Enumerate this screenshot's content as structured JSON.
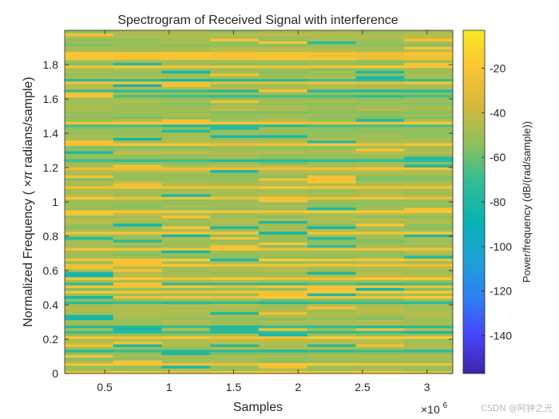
{
  "chart_data": {
    "type": "heatmap",
    "title": "Spectrogram of Received Signal with interference",
    "xlabel": "Samples",
    "ylabel_prefix": "Normalized Frequency (",
    "ylabel_symbol": "×π",
    "ylabel_suffix": " radians/sample)",
    "x_multiplier_base": "×10",
    "x_multiplier_exp": "6",
    "xlim": [
      0.19,
      3.2
    ],
    "ylim": [
      0,
      2
    ],
    "x_ticks": [
      0.5,
      1,
      1.5,
      2,
      2.5,
      3
    ],
    "x_tick_labels": [
      "0.5",
      "1",
      "1.5",
      "2",
      "2.5",
      "3"
    ],
    "y_ticks": [
      0,
      0.2,
      0.4,
      0.6,
      0.8,
      1,
      1.2,
      1.4,
      1.6,
      1.8
    ],
    "y_tick_labels": [
      "0",
      "0.2",
      "0.4",
      "0.6",
      "0.8",
      "1",
      "1.2",
      "1.4",
      "1.6",
      "1.8"
    ],
    "time_segments": 8,
    "frequency_bins": 128,
    "colorbar": {
      "label": "Power/frequency (dB/(rad/sample))",
      "range": [
        -157,
        -3
      ],
      "ticks": [
        -20,
        -40,
        -60,
        -80,
        -100,
        -120,
        -140
      ],
      "tick_labels": [
        "-20",
        "-40",
        "-60",
        "-80",
        "-100",
        "-120",
        "-140"
      ],
      "colormap": [
        "#3e26a8",
        "#4743f8",
        "#2f7ff4",
        "#1fa0d6",
        "#07b2b6",
        "#33bc92",
        "#8ec05e",
        "#d6b93b",
        "#fbc435",
        "#f7e925"
      ]
    },
    "power_description_db": {
      "typical": -50,
      "bright_lines": -25,
      "dark_lines": -80
    }
  },
  "watermark": "CSDN @阿钟之光"
}
